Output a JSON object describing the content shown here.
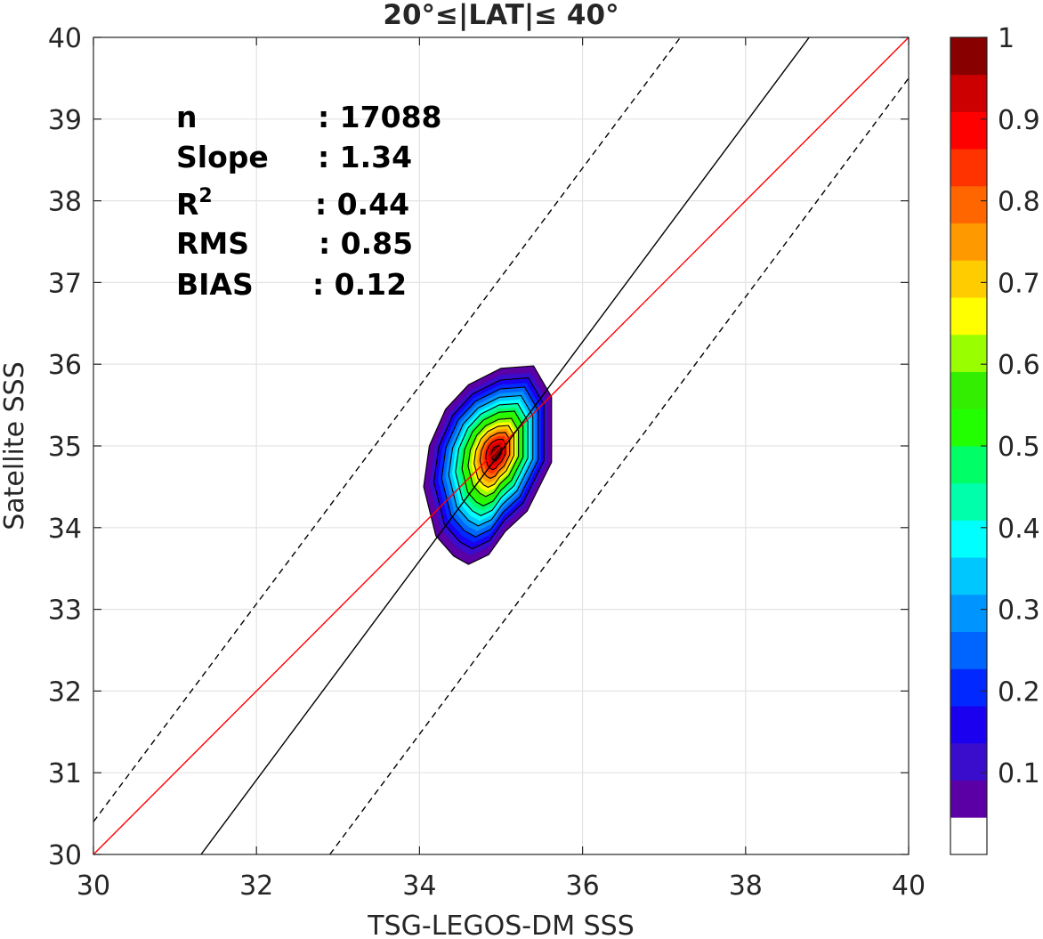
{
  "chart_data": {
    "type": "contour-density",
    "title": "20°≤|LAT|≤ 40°",
    "xlabel": "TSG-LEGOS-DM SSS",
    "ylabel": "Satellite SSS",
    "xlim": [
      30,
      40
    ],
    "ylim": [
      30,
      40
    ],
    "xticks": [
      30,
      32,
      34,
      36,
      38,
      40
    ],
    "yticks": [
      30,
      31,
      32,
      33,
      34,
      35,
      36,
      37,
      38,
      39,
      40
    ],
    "grid": true,
    "stats": [
      {
        "label": "n",
        "value": ": 17088"
      },
      {
        "label": "Slope",
        "value": ": 1.34"
      },
      {
        "label": "R",
        "sup": "2",
        "value": ": 0.44"
      },
      {
        "label": "RMS",
        "value": ": 0.85"
      },
      {
        "label": "BIAS",
        "value": ": 0.12"
      }
    ],
    "lines": [
      {
        "role": "one-to-one",
        "color": "#ff0000",
        "style": "solid",
        "points": [
          [
            30,
            30
          ],
          [
            40,
            40
          ]
        ]
      },
      {
        "role": "regression",
        "color": "#000000",
        "style": "solid",
        "points": [
          [
            31.32,
            30
          ],
          [
            38.78,
            40
          ]
        ]
      },
      {
        "role": "upper-bound",
        "color": "#000000",
        "style": "dashed",
        "points": [
          [
            30,
            30.4
          ],
          [
            37.2,
            40
          ]
        ]
      },
      {
        "role": "lower-bound",
        "color": "#000000",
        "style": "dashed",
        "points": [
          [
            32.9,
            30
          ],
          [
            40,
            39.5
          ]
        ]
      }
    ],
    "density": {
      "center": [
        34.95,
        34.92
      ],
      "levels": [
        0.05,
        0.15,
        0.25,
        0.35,
        0.45,
        0.55,
        0.65,
        0.75,
        0.85,
        0.95
      ],
      "outer_contour": [
        [
          34.2,
          33.9
        ],
        [
          34.42,
          33.65
        ],
        [
          34.6,
          33.55
        ],
        [
          34.85,
          33.67
        ],
        [
          35.05,
          33.95
        ],
        [
          35.32,
          34.2
        ],
        [
          35.62,
          34.8
        ],
        [
          35.62,
          35.6
        ],
        [
          35.4,
          35.98
        ],
        [
          35.0,
          35.95
        ],
        [
          34.6,
          35.75
        ],
        [
          34.32,
          35.45
        ],
        [
          34.12,
          35.0
        ],
        [
          34.05,
          34.5
        ]
      ]
    },
    "colorbar": {
      "ticks": [
        0.1,
        0.2,
        0.3,
        0.4,
        0.5,
        0.6,
        0.7,
        0.8,
        0.9,
        1
      ],
      "tick_labels": [
        "0.1",
        "0.2",
        "0.3",
        "0.4",
        "0.5",
        "0.6",
        "0.7",
        "0.8",
        "0.9",
        "1"
      ],
      "range": [
        0,
        1
      ],
      "colors": [
        "#ffffff",
        "#5a00a4",
        "#3a0ccc",
        "#1a00ee",
        "#0028ff",
        "#0064ff",
        "#0094ff",
        "#00c8ff",
        "#00ffff",
        "#00ffaa",
        "#00ff66",
        "#22ff00",
        "#33ee00",
        "#99ff00",
        "#ffff00",
        "#ffcc00",
        "#ff9900",
        "#ff6600",
        "#ff3300",
        "#ff0000",
        "#cc0000",
        "#880000"
      ]
    }
  }
}
